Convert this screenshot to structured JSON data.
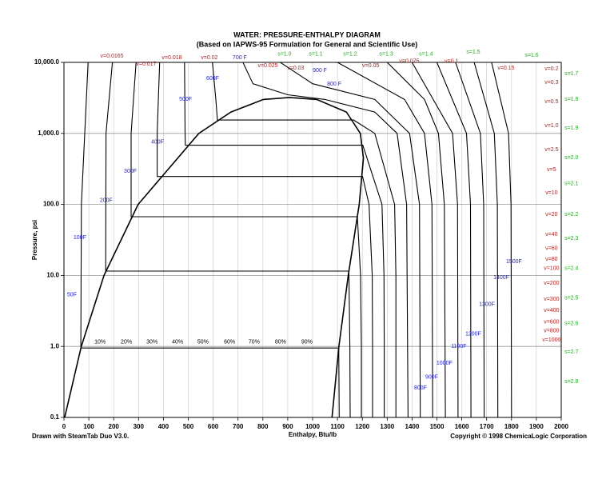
{
  "chart_data": {
    "type": "line",
    "title": "WATER: PRESSURE-ENTHALPY DIAGRAM",
    "subtitle": "(Based on IAPWS-95 Formulation for General and Scientific Use)",
    "xlabel": "Enthalpy, Btu/lb",
    "ylabel": "Pressure, psi",
    "footer_left": "Drawn with SteamTab Duo V3.0.",
    "footer_right": "Copyright © 1998 ChemicaLogic Corporation",
    "log_y": true,
    "grid": true,
    "xlim": [
      0,
      2000
    ],
    "ylim": [
      0.1,
      10000
    ],
    "xticks": [
      0,
      100,
      200,
      300,
      400,
      500,
      600,
      700,
      800,
      900,
      1000,
      1100,
      1200,
      1300,
      1400,
      1500,
      1600,
      1700,
      1800,
      1900,
      2000
    ],
    "yticks": [
      0.1,
      {
        "value": 1,
        "label": "1.0"
      },
      {
        "value": 10,
        "label": "10.0"
      },
      {
        "value": 100,
        "label": "100.0"
      },
      {
        "value": 1000,
        "label": "1,000.0"
      },
      {
        "value": 10000,
        "label": "10,000.0"
      }
    ],
    "series": [
      {
        "color": "#000000",
        "x": [
          3,
          69.7,
          161.2,
          298.5,
          542.6,
          671.7,
          802,
          906,
          1017,
          1136,
          1192,
          1204.6,
          1187.5,
          1143.3,
          1105.8,
          1078
        ],
        "values": [
          0.1,
          1,
          10,
          100,
          1000,
          2000,
          3000,
          3200,
          3000,
          2000,
          1000,
          450,
          100,
          10,
          1,
          0.1
        ]
      },
      {
        "color": "#000000",
        "x": [
          1107,
          1105,
          68,
          70,
          97
        ],
        "values": [
          0.1,
          0.95,
          0.95,
          100,
          10000
        ]
      },
      {
        "color": "#000000",
        "x": [
          1151,
          1150,
          1146,
          168,
          169,
          195
        ],
        "values": [
          0.1,
          1,
          11.5,
          11.5,
          1000,
          10000
        ]
      },
      {
        "color": "#000000",
        "x": [
          1196,
          1196,
          1193,
          1180,
          270,
          270,
          290
        ],
        "values": [
          0.1,
          1,
          10,
          67,
          67,
          1000,
          10000
        ]
      },
      {
        "color": "#000000",
        "x": [
          1241,
          1241,
          1240,
          1227,
          1201,
          375,
          375,
          385
        ],
        "values": [
          0.1,
          1,
          10,
          100,
          247,
          247,
          1000,
          10000
        ]
      },
      {
        "color": "#000000",
        "x": [
          1288,
          1288,
          1287,
          1279,
          1202,
          488,
          487,
          485
        ],
        "values": [
          0.1,
          1,
          10,
          100,
          681,
          681,
          1000,
          10000
        ]
      },
      {
        "color": "#000000",
        "x": [
          1335,
          1335,
          1330,
          1250,
          1165,
          617,
          611,
          597
        ],
        "values": [
          0.1,
          10,
          100,
          1000,
          1543,
          1543,
          3000,
          10000
        ]
      },
      {
        "color": "#000000",
        "x": [
          1384,
          1378,
          1340,
          1250,
          1050,
          900,
          760,
          720
        ],
        "values": [
          0.1,
          100,
          1000,
          2000,
          3000,
          3500,
          5000,
          10000
        ]
      },
      {
        "color": "#000000",
        "x": [
          1433,
          1430,
          1390,
          1250,
          1000,
          870
        ],
        "values": [
          0.1,
          100,
          1000,
          3000,
          5000,
          10000
        ]
      },
      {
        "color": "#000000",
        "x": [
          1483,
          1480,
          1450,
          1370,
          1100
        ],
        "values": [
          0.1,
          100,
          1000,
          3000,
          10000
        ]
      },
      {
        "color": "#000000",
        "x": [
          1534,
          1530,
          1506,
          1450,
          1300
        ],
        "values": [
          0.1,
          100,
          1000,
          3000,
          10000
        ]
      },
      {
        "color": "#000000",
        "x": [
          1585,
          1583,
          1563,
          1400
        ],
        "values": [
          0.1,
          100,
          1000,
          10000
        ]
      },
      {
        "color": "#000000",
        "x": [
          1637,
          1635,
          1619,
          1500
        ],
        "values": [
          0.1,
          100,
          1000,
          10000
        ]
      },
      {
        "color": "#000000",
        "x": [
          1690,
          1688,
          1675,
          1575
        ],
        "values": [
          0.1,
          100,
          1000,
          10000
        ]
      },
      {
        "color": "#000000",
        "x": [
          1745,
          1743,
          1731,
          1650
        ],
        "values": [
          0.1,
          100,
          1000,
          10000
        ]
      },
      {
        "color": "#000000",
        "x": [
          1800,
          1798,
          1788,
          1720
        ],
        "values": [
          0.1,
          100,
          1000,
          10000
        ]
      }
    ],
    "annotations": [
      {
        "text": "v=0.0165",
        "x": 193,
        "y": 12300,
        "color": "#aa2222"
      },
      {
        "text": "v=0.017",
        "x": 331,
        "y": 9500,
        "color": "#aa2222"
      },
      {
        "text": "v=0.018",
        "x": 434,
        "y": 11700,
        "color": "#aa2222"
      },
      {
        "text": "v=0.02",
        "x": 585,
        "y": 11700,
        "color": "#aa2222"
      },
      {
        "text": "700 F",
        "x": 707,
        "y": 11700,
        "color": "#2222cc"
      },
      {
        "text": "v=0.025",
        "x": 820,
        "y": 9000,
        "color": "#aa2222"
      },
      {
        "text": "v=0.03",
        "x": 932,
        "y": 8340,
        "color": "#aa2222"
      },
      {
        "text": "v=0.05",
        "x": 1234,
        "y": 9000,
        "color": "#aa2222"
      },
      {
        "text": "v=0.075",
        "x": 1389,
        "y": 10300,
        "color": "#aa2222"
      },
      {
        "text": "v=0.1",
        "x": 1559,
        "y": 10300,
        "color": "#aa2222"
      },
      {
        "text": "v=0.15",
        "x": 1778,
        "y": 8340,
        "color": "#aa2222"
      },
      {
        "text": "s=1.0",
        "x": 887,
        "y": 13000,
        "color": "#22aa22"
      },
      {
        "text": "s=1.1",
        "x": 1013,
        "y": 13000,
        "color": "#22aa22"
      },
      {
        "text": "s=1.2",
        "x": 1151,
        "y": 13000,
        "color": "#22aa22"
      },
      {
        "text": "s=1.3",
        "x": 1296,
        "y": 13000,
        "color": "#22aa22"
      },
      {
        "text": "s=1.4",
        "x": 1456,
        "y": 13000,
        "color": "#22aa22"
      },
      {
        "text": "s=1.5",
        "x": 1646,
        "y": 14000,
        "color": "#22aa22"
      },
      {
        "text": "s=1.6",
        "x": 1881,
        "y": 12600,
        "color": "#22aa22"
      },
      {
        "text": "900 F",
        "x": 1029,
        "y": 7700,
        "color": "#2222cc"
      },
      {
        "text": "800 F",
        "x": 1087,
        "y": 4960,
        "color": "#2222cc"
      },
      {
        "text": "600F",
        "x": 598,
        "y": 5950,
        "color": "#2222cc"
      },
      {
        "text": "500F",
        "x": 489,
        "y": 3030,
        "color": "#2222cc"
      },
      {
        "text": "400F",
        "x": 376,
        "y": 750,
        "color": "#2222cc"
      },
      {
        "text": "300F",
        "x": 267,
        "y": 294,
        "color": "#2222cc"
      },
      {
        "text": "200F",
        "x": 170,
        "y": 113,
        "color": "#2222cc"
      },
      {
        "text": "100F",
        "x": 64,
        "y": 34,
        "color": "#2222cc"
      },
      {
        "text": "50F",
        "x": 32,
        "y": 5.3,
        "color": "#2222cc"
      },
      {
        "text": "1500F",
        "x": 1810,
        "y": 15.7,
        "color": "#2222cc"
      },
      {
        "text": "1400F",
        "x": 1759,
        "y": 9.3,
        "color": "#2222cc"
      },
      {
        "text": "1300F",
        "x": 1701,
        "y": 3.9,
        "color": "#2222cc"
      },
      {
        "text": "1200F",
        "x": 1646,
        "y": 1.5,
        "color": "#2222cc"
      },
      {
        "text": "1100F",
        "x": 1588,
        "y": 1.0,
        "color": "#2222cc"
      },
      {
        "text": "1000F",
        "x": 1530,
        "y": 0.58,
        "color": "#2222cc"
      },
      {
        "text": "900F",
        "x": 1479,
        "y": 0.37,
        "color": "#2222cc"
      },
      {
        "text": "800F",
        "x": 1434,
        "y": 0.26,
        "color": "#2222cc"
      },
      {
        "text": "10%",
        "x": 145,
        "y": 1.15,
        "color": "#000000"
      },
      {
        "text": "20%",
        "x": 251,
        "y": 1.15,
        "color": "#000000"
      },
      {
        "text": "30%",
        "x": 354,
        "y": 1.15,
        "color": "#000000"
      },
      {
        "text": "40%",
        "x": 457,
        "y": 1.15,
        "color": "#000000"
      },
      {
        "text": "50%",
        "x": 559,
        "y": 1.15,
        "color": "#000000"
      },
      {
        "text": "60%",
        "x": 666,
        "y": 1.15,
        "color": "#000000"
      },
      {
        "text": "70%",
        "x": 765,
        "y": 1.15,
        "color": "#000000"
      },
      {
        "text": "80%",
        "x": 871,
        "y": 1.15,
        "color": "#000000"
      },
      {
        "text": "90%",
        "x": 977,
        "y": 1.15,
        "color": "#000000"
      },
      {
        "text": "v=0.2",
        "x": 1961,
        "y": 8100,
        "color": "#aa2222"
      },
      {
        "text": "v=0.3",
        "x": 1961,
        "y": 5230,
        "color": "#aa2222"
      },
      {
        "text": "v=0.5",
        "x": 1961,
        "y": 2810,
        "color": "#aa2222"
      },
      {
        "text": "v=1.0",
        "x": 1961,
        "y": 1290,
        "color": "#aa2222"
      },
      {
        "text": "v=2.5",
        "x": 1961,
        "y": 590,
        "color": "#aa2222"
      },
      {
        "text": "v=5",
        "x": 1961,
        "y": 310,
        "color": "#aa2222"
      },
      {
        "text": "v=10",
        "x": 1961,
        "y": 146,
        "color": "#aa2222"
      },
      {
        "text": "v=20",
        "x": 1961,
        "y": 72,
        "color": "#aa2222"
      },
      {
        "text": "v=40",
        "x": 1961,
        "y": 38,
        "color": "#aa2222"
      },
      {
        "text": "v=60",
        "x": 1961,
        "y": 24,
        "color": "#aa2222"
      },
      {
        "text": "v=80",
        "x": 1961,
        "y": 17,
        "color": "#aa2222"
      },
      {
        "text": "v=100",
        "x": 1961,
        "y": 12.5,
        "color": "#aa2222"
      },
      {
        "text": "v=200",
        "x": 1961,
        "y": 7.8,
        "color": "#aa2222"
      },
      {
        "text": "v=300",
        "x": 1961,
        "y": 4.6,
        "color": "#aa2222"
      },
      {
        "text": "v=400",
        "x": 1961,
        "y": 3.2,
        "color": "#aa2222"
      },
      {
        "text": "v=600",
        "x": 1961,
        "y": 2.2,
        "color": "#aa2222"
      },
      {
        "text": "v=800",
        "x": 1961,
        "y": 1.67,
        "color": "#aa2222"
      },
      {
        "text": "v=1000",
        "x": 1961,
        "y": 1.23,
        "color": "#aa2222"
      },
      {
        "text": "s=1.7",
        "x": 2041,
        "y": 6950,
        "color": "#22aa22"
      },
      {
        "text": "s=1.8",
        "x": 2041,
        "y": 3030,
        "color": "#22aa22"
      },
      {
        "text": "s=1.9",
        "x": 2041,
        "y": 1190,
        "color": "#22aa22"
      },
      {
        "text": "s=2.0",
        "x": 2041,
        "y": 458,
        "color": "#22aa22"
      },
      {
        "text": "s=2.1",
        "x": 2041,
        "y": 195,
        "color": "#22aa22"
      },
      {
        "text": "s=2.2",
        "x": 2041,
        "y": 72,
        "color": "#22aa22"
      },
      {
        "text": "s=2.3",
        "x": 2041,
        "y": 33,
        "color": "#22aa22"
      },
      {
        "text": "s=2.4",
        "x": 2041,
        "y": 12.5,
        "color": "#22aa22"
      },
      {
        "text": "s=2.5",
        "x": 2041,
        "y": 4.8,
        "color": "#22aa22"
      },
      {
        "text": "s=2.6",
        "x": 2041,
        "y": 2.1,
        "color": "#22aa22"
      },
      {
        "text": "s=2.7",
        "x": 2041,
        "y": 0.84,
        "color": "#22aa22"
      },
      {
        "text": "s=2.8",
        "x": 2041,
        "y": 0.32,
        "color": "#22aa22"
      }
    ]
  }
}
